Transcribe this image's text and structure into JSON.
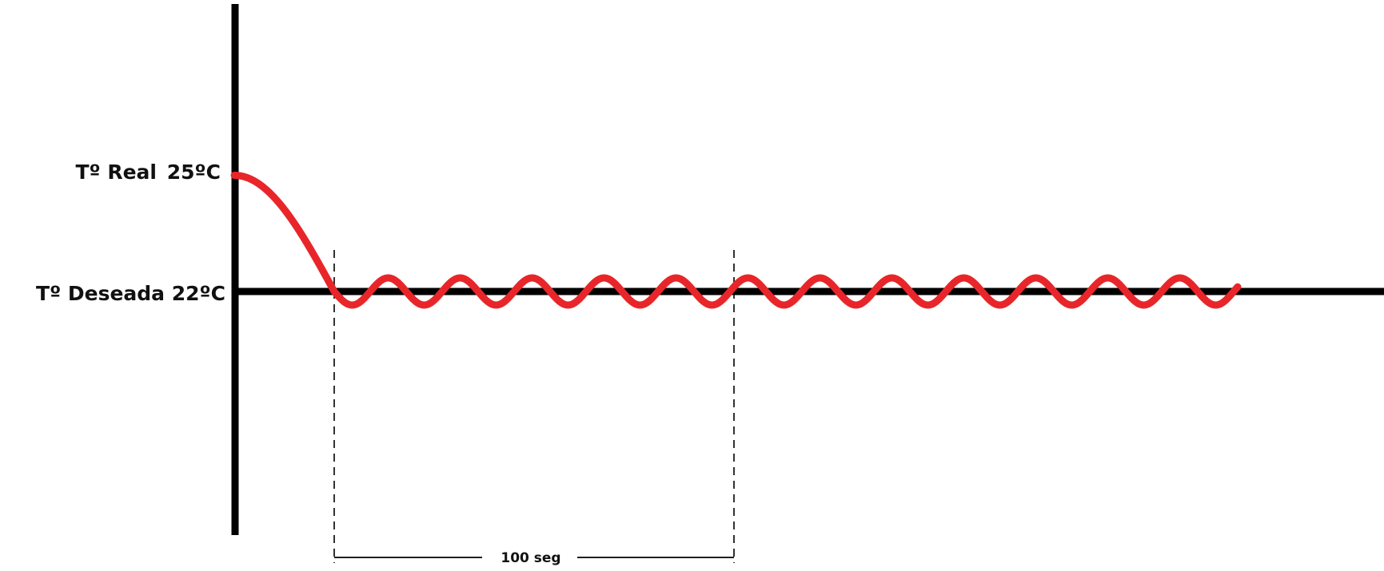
{
  "colors": {
    "axis": "#000000",
    "curve": "#e8262a",
    "text": "#111111",
    "background": "#ffffff"
  },
  "chart_data": {
    "type": "line",
    "title": "",
    "xlabel": "",
    "ylabel": "",
    "grid": false,
    "y_labels": {
      "real": {
        "prefix": "Tº Real",
        "value": "25ºC"
      },
      "desired": "Tº Deseada 22ºC"
    },
    "y_values": {
      "real": 25,
      "desired": 22
    },
    "interval_label": "100 seg",
    "interval_seconds": 100,
    "series": [
      {
        "color": "#e8262a",
        "segments": [
          {
            "shape": "decay",
            "x_start": -25,
            "x_end": 0,
            "y_start": 25,
            "y_end": 22
          },
          {
            "shape": "oscillation",
            "x_start": 0,
            "x_end": 226,
            "center": 22,
            "amplitude": 0.35,
            "period": 18,
            "starts_downward": true
          }
        ]
      }
    ]
  }
}
